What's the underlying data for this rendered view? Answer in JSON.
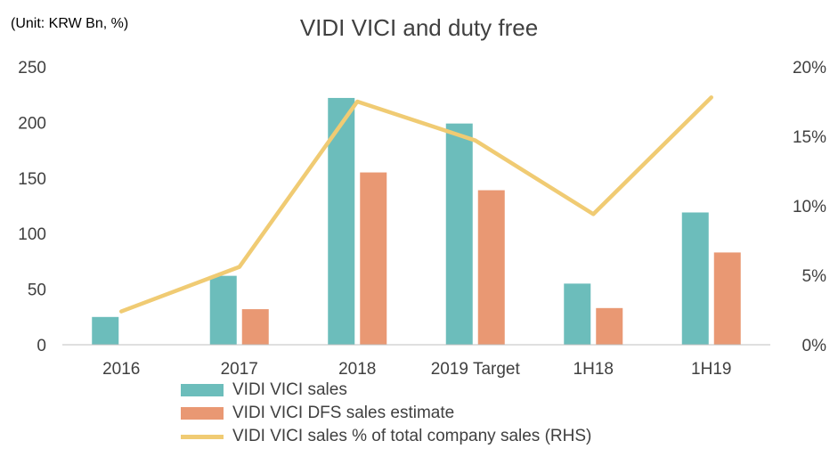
{
  "unit_note": "(Unit: KRW Bn, %)",
  "colors": {
    "sales": "#6cbdbb",
    "dfs": "#e99873",
    "pct": "#f0cb73",
    "axis": "#bfbfbf",
    "text": "#404040"
  },
  "chart_data": {
    "type": "bar",
    "title": "VIDI VICI and duty free",
    "categories": [
      "2016",
      "2017",
      "2018",
      "2019 Target",
      "1H18",
      "1H19"
    ],
    "series": [
      {
        "name": "VIDI VICI sales",
        "type": "bar",
        "axis": "left",
        "values": [
          25,
          62,
          222,
          199,
          55,
          119
        ]
      },
      {
        "name": "VIDI VICI DFS sales estimate",
        "type": "bar",
        "axis": "left",
        "values": [
          null,
          32,
          155,
          139,
          33,
          83
        ]
      },
      {
        "name": "VIDI VICI sales % of total company sales (RHS)",
        "type": "line",
        "axis": "right",
        "values": [
          2.4,
          5.6,
          17.5,
          14.7,
          9.4,
          17.8
        ]
      }
    ],
    "y_left": {
      "range": [
        0,
        250
      ],
      "ticks": [
        "0",
        "50",
        "100",
        "150",
        "200",
        "250"
      ]
    },
    "y_right": {
      "range": [
        0,
        20
      ],
      "ticks": [
        "0%",
        "5%",
        "10%",
        "15%",
        "20%"
      ]
    },
    "legend_position": "bottom",
    "grid": false
  }
}
